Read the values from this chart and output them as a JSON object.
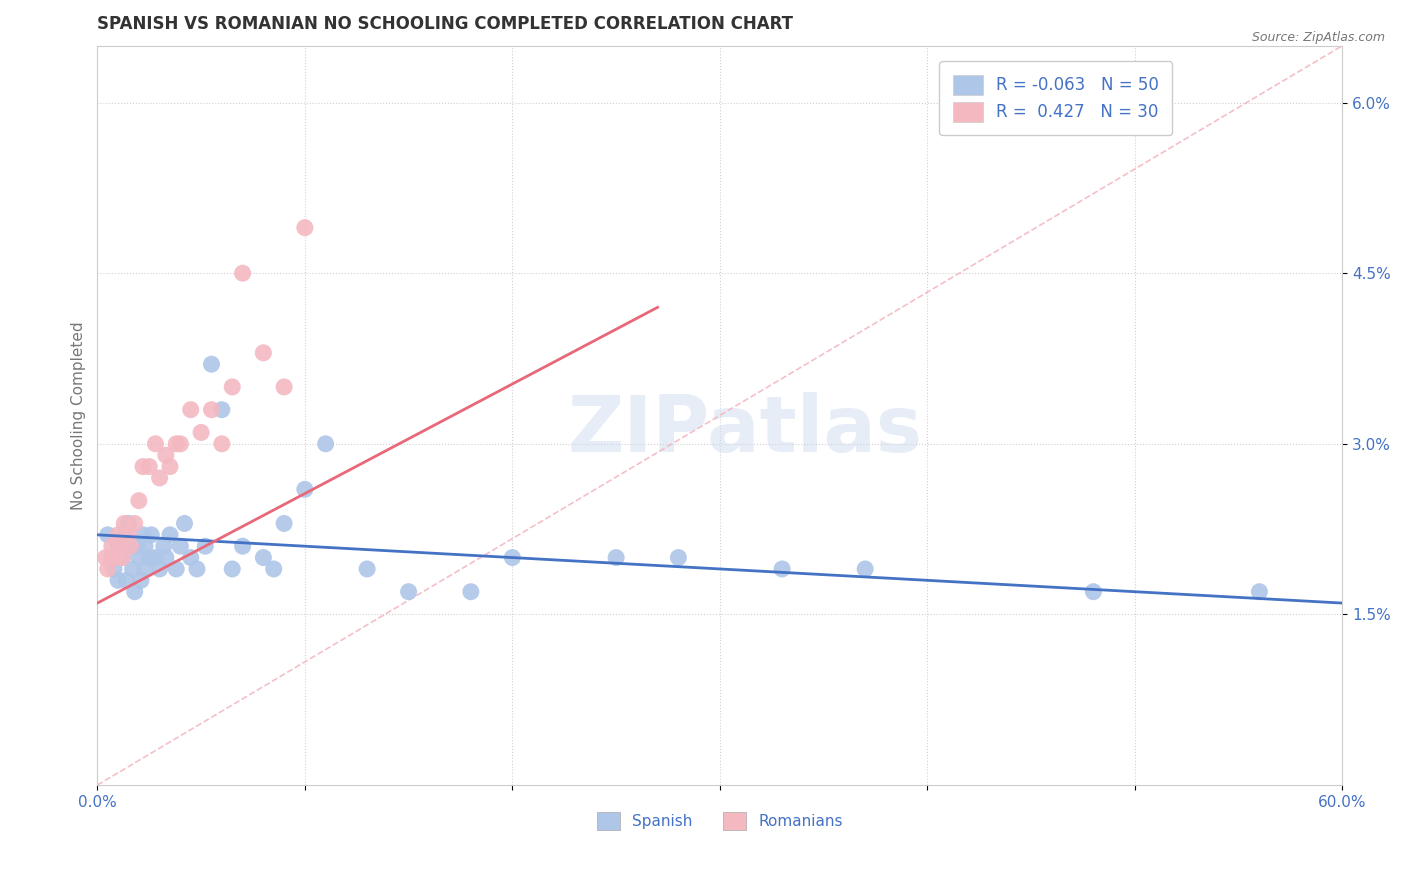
{
  "title": "SPANISH VS ROMANIAN NO SCHOOLING COMPLETED CORRELATION CHART",
  "source_text": "Source: ZipAtlas.com",
  "ylabel": "No Schooling Completed",
  "watermark": "ZIPatlas",
  "x_min": 0.0,
  "x_max": 0.6,
  "y_min": 0.0,
  "y_max": 0.065,
  "x_ticks": [
    0.0,
    0.1,
    0.2,
    0.3,
    0.4,
    0.5,
    0.6
  ],
  "x_tick_labels": [
    "0.0%",
    "",
    "",
    "",
    "",
    "",
    "60.0%"
  ],
  "y_ticks": [
    0.015,
    0.03,
    0.045,
    0.06
  ],
  "y_tick_labels": [
    "1.5%",
    "3.0%",
    "4.5%",
    "6.0%"
  ],
  "spanish_color": "#aec6e8",
  "romanian_color": "#f4b8c1",
  "spanish_line_color": "#4472c4",
  "romanian_line_color": "#e8687a",
  "diagonal_line_color": "#f4b8c1",
  "R_spanish": -0.063,
  "N_spanish": 50,
  "R_romanian": 0.427,
  "N_romanian": 30,
  "legend_text_color": "#4472c4",
  "spanish_x": [
    0.005,
    0.007,
    0.008,
    0.01,
    0.01,
    0.012,
    0.013,
    0.014,
    0.015,
    0.015,
    0.017,
    0.018,
    0.019,
    0.02,
    0.021,
    0.022,
    0.023,
    0.023,
    0.025,
    0.026,
    0.028,
    0.03,
    0.032,
    0.033,
    0.035,
    0.038,
    0.04,
    0.042,
    0.045,
    0.048,
    0.052,
    0.055,
    0.06,
    0.065,
    0.07,
    0.08,
    0.085,
    0.09,
    0.1,
    0.11,
    0.13,
    0.15,
    0.18,
    0.2,
    0.25,
    0.28,
    0.33,
    0.37,
    0.48,
    0.56
  ],
  "spanish_y": [
    0.022,
    0.02,
    0.019,
    0.021,
    0.018,
    0.02,
    0.022,
    0.018,
    0.021,
    0.023,
    0.019,
    0.017,
    0.021,
    0.02,
    0.018,
    0.022,
    0.019,
    0.021,
    0.02,
    0.022,
    0.02,
    0.019,
    0.021,
    0.02,
    0.022,
    0.019,
    0.021,
    0.023,
    0.02,
    0.019,
    0.021,
    0.037,
    0.033,
    0.019,
    0.021,
    0.02,
    0.019,
    0.023,
    0.026,
    0.03,
    0.019,
    0.017,
    0.017,
    0.02,
    0.02,
    0.02,
    0.019,
    0.019,
    0.017,
    0.017
  ],
  "romanian_x": [
    0.004,
    0.005,
    0.007,
    0.008,
    0.009,
    0.01,
    0.011,
    0.012,
    0.013,
    0.015,
    0.016,
    0.018,
    0.02,
    0.022,
    0.025,
    0.028,
    0.03,
    0.033,
    0.035,
    0.038,
    0.04,
    0.045,
    0.05,
    0.055,
    0.06,
    0.065,
    0.07,
    0.08,
    0.09,
    0.1
  ],
  "romanian_y": [
    0.02,
    0.019,
    0.021,
    0.02,
    0.02,
    0.022,
    0.021,
    0.02,
    0.023,
    0.022,
    0.021,
    0.023,
    0.025,
    0.028,
    0.028,
    0.03,
    0.027,
    0.029,
    0.028,
    0.03,
    0.03,
    0.033,
    0.031,
    0.033,
    0.03,
    0.035,
    0.045,
    0.038,
    0.035,
    0.049
  ],
  "spanish_line_x": [
    0.0,
    0.6
  ],
  "spanish_line_y": [
    0.022,
    0.016
  ],
  "romanian_line_x": [
    0.0,
    0.27
  ],
  "romanian_line_y": [
    0.016,
    0.042
  ]
}
